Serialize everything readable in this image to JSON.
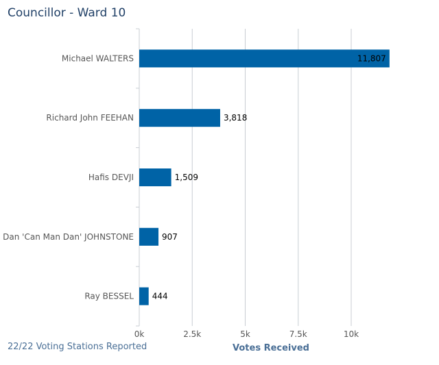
{
  "title": "Councillor - Ward 10",
  "footer": {
    "status": "22/22 Voting Stations Reported"
  },
  "colors": {
    "bar": "#0063a6",
    "grid": "#c8cdd3",
    "title": "#1f3f66",
    "axis_title": "#4a6f96"
  },
  "chart_data": {
    "type": "bar",
    "orientation": "horizontal",
    "categories": [
      "Michael WALTERS",
      "Richard John FEEHAN",
      "Hafis DEVJI",
      "Dan 'Can Man Dan' JOHNSTONE",
      "Ray BESSEL"
    ],
    "values": [
      11807,
      3818,
      1509,
      907,
      444
    ],
    "data_labels": [
      "11,807",
      "3,818",
      "1,509",
      "907",
      "444"
    ],
    "xlabel": "Votes Received",
    "xlim": [
      0,
      12000
    ],
    "xticks": [
      0,
      2500,
      5000,
      7500,
      10000
    ],
    "xtick_labels": [
      "0k",
      "2.5k",
      "5k",
      "7.5k",
      "10k"
    ],
    "grid": true
  }
}
